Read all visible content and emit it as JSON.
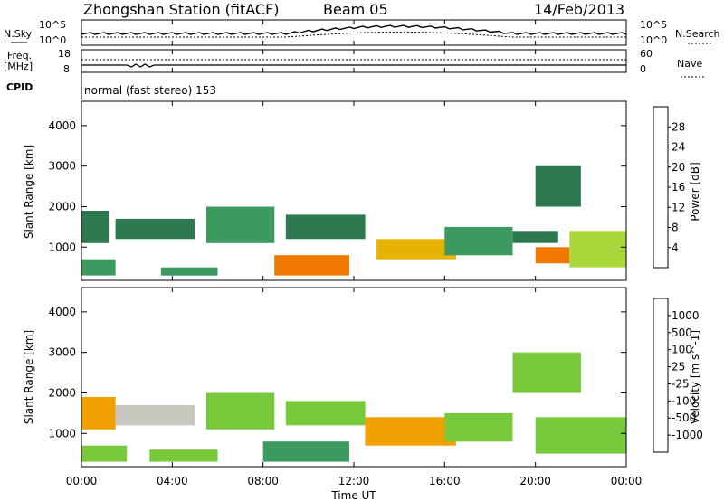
{
  "header": {
    "station": "Zhongshan Station (fitACF)",
    "beam": "Beam 05",
    "date": "14/Feb/2013"
  },
  "top_panels": {
    "nsky_label": "N.Sky",
    "nsearch_label": "N.Search",
    "noise_ticks": [
      "10^5",
      "10^0"
    ],
    "freq_label": "Freq.",
    "freq_unit": "[MHz]",
    "freq_ticks": [
      "18",
      "8"
    ],
    "nave_label": "Nave",
    "nave_ticks": [
      "60",
      "0"
    ],
    "cpid_label": "CPID",
    "cpid_text": "normal (fast stereo) 153"
  },
  "colors": {
    "power": [
      "#1e1ee6",
      "#1e4db3",
      "#2d7a50",
      "#3c9a60",
      "#a8d83c",
      "#e6b400",
      "#f07800",
      "#f04600",
      "#e60000"
    ],
    "velocity": [
      "#e60000",
      "#f04600",
      "#f07800",
      "#f0a000",
      "#c8c8c0",
      "#78c83c",
      "#3c9a60",
      "#2d7a50",
      "#1e4db3",
      "#1e1ee6"
    ]
  },
  "chart_data": [
    {
      "type": "heatmap",
      "name": "power",
      "title": "",
      "xlabel": "Time UT",
      "ylabel": "Slant Range [km]",
      "xticks": [
        "00:00",
        "04:00",
        "08:00",
        "12:00",
        "16:00",
        "20:00",
        "00:00"
      ],
      "xlim_hours": [
        0,
        24
      ],
      "yticks": [
        1000,
        2000,
        3000,
        4000
      ],
      "ylim": [
        180,
        4600
      ],
      "colorbar": {
        "label": "Power [dB]",
        "ticks": [
          4,
          8,
          12,
          16,
          20,
          24,
          28
        ],
        "range": [
          0,
          32
        ]
      },
      "echo_regions": [
        {
          "t0": 0.0,
          "t1": 1.2,
          "r0": 1100,
          "r1": 1900,
          "value": 10
        },
        {
          "t0": 0.0,
          "t1": 1.5,
          "r0": 300,
          "r1": 700,
          "value": 12
        },
        {
          "t0": 1.5,
          "t1": 5.0,
          "r0": 1200,
          "r1": 1700,
          "value": 9
        },
        {
          "t0": 3.5,
          "t1": 6.0,
          "r0": 300,
          "r1": 500,
          "value": 14
        },
        {
          "t0": 5.5,
          "t1": 8.5,
          "r0": 1100,
          "r1": 2000,
          "value": 11
        },
        {
          "t0": 8.5,
          "t1": 11.8,
          "r0": 300,
          "r1": 800,
          "value": 22
        },
        {
          "t0": 9.0,
          "t1": 12.5,
          "r0": 1200,
          "r1": 1800,
          "value": 10
        },
        {
          "t0": 13.0,
          "t1": 16.5,
          "r0": 700,
          "r1": 1200,
          "value": 20
        },
        {
          "t0": 16.0,
          "t1": 19.0,
          "r0": 800,
          "r1": 1500,
          "value": 14
        },
        {
          "t0": 19.0,
          "t1": 21.0,
          "r0": 1100,
          "r1": 1400,
          "value": 10
        },
        {
          "t0": 20.0,
          "t1": 21.5,
          "r0": 600,
          "r1": 1000,
          "value": 24
        },
        {
          "t0": 20.0,
          "t1": 22.0,
          "r0": 2000,
          "r1": 3000,
          "value": 10
        },
        {
          "t0": 21.5,
          "t1": 24.0,
          "r0": 500,
          "r1": 1400,
          "value": 16
        }
      ]
    },
    {
      "type": "heatmap",
      "name": "velocity",
      "title": "",
      "xlabel": "Time UT",
      "ylabel": "Slant Range [km]",
      "xticks": [
        "00:00",
        "04:00",
        "08:00",
        "12:00",
        "16:00",
        "20:00",
        "00:00"
      ],
      "xlim_hours": [
        0,
        24
      ],
      "yticks": [
        1000,
        2000,
        3000,
        4000
      ],
      "ylim": [
        180,
        4600
      ],
      "colorbar": {
        "label": "Velocity [m s^-1]",
        "ticks": [
          "-1000",
          "-500",
          "-100",
          "-25",
          "25",
          "100",
          "500",
          "1000"
        ],
        "range": [
          -1200,
          1200
        ]
      },
      "echo_regions": [
        {
          "t0": 0.0,
          "t1": 1.5,
          "r0": 1100,
          "r1": 1900,
          "value": -300
        },
        {
          "t0": 0.0,
          "t1": 2.0,
          "r0": 300,
          "r1": 700,
          "value": 150
        },
        {
          "t0": 1.5,
          "t1": 5.0,
          "r0": 1200,
          "r1": 1700,
          "value": -200
        },
        {
          "t0": 3.0,
          "t1": 6.0,
          "r0": 300,
          "r1": 600,
          "value": 200
        },
        {
          "t0": 5.5,
          "t1": 8.5,
          "r0": 1100,
          "r1": 2000,
          "value": 0
        },
        {
          "t0": 8.0,
          "t1": 11.8,
          "r0": 300,
          "r1": 800,
          "value": 300
        },
        {
          "t0": 9.0,
          "t1": 12.5,
          "r0": 1200,
          "r1": 1800,
          "value": 0
        },
        {
          "t0": 12.5,
          "t1": 16.5,
          "r0": 700,
          "r1": 1400,
          "value": -400
        },
        {
          "t0": 16.0,
          "t1": 19.0,
          "r0": 800,
          "r1": 1500,
          "value": 200
        },
        {
          "t0": 19.0,
          "t1": 22.0,
          "r0": 2000,
          "r1": 3000,
          "value": 0
        },
        {
          "t0": 20.0,
          "t1": 24.0,
          "r0": 500,
          "r1": 1400,
          "value": 150
        }
      ]
    }
  ]
}
